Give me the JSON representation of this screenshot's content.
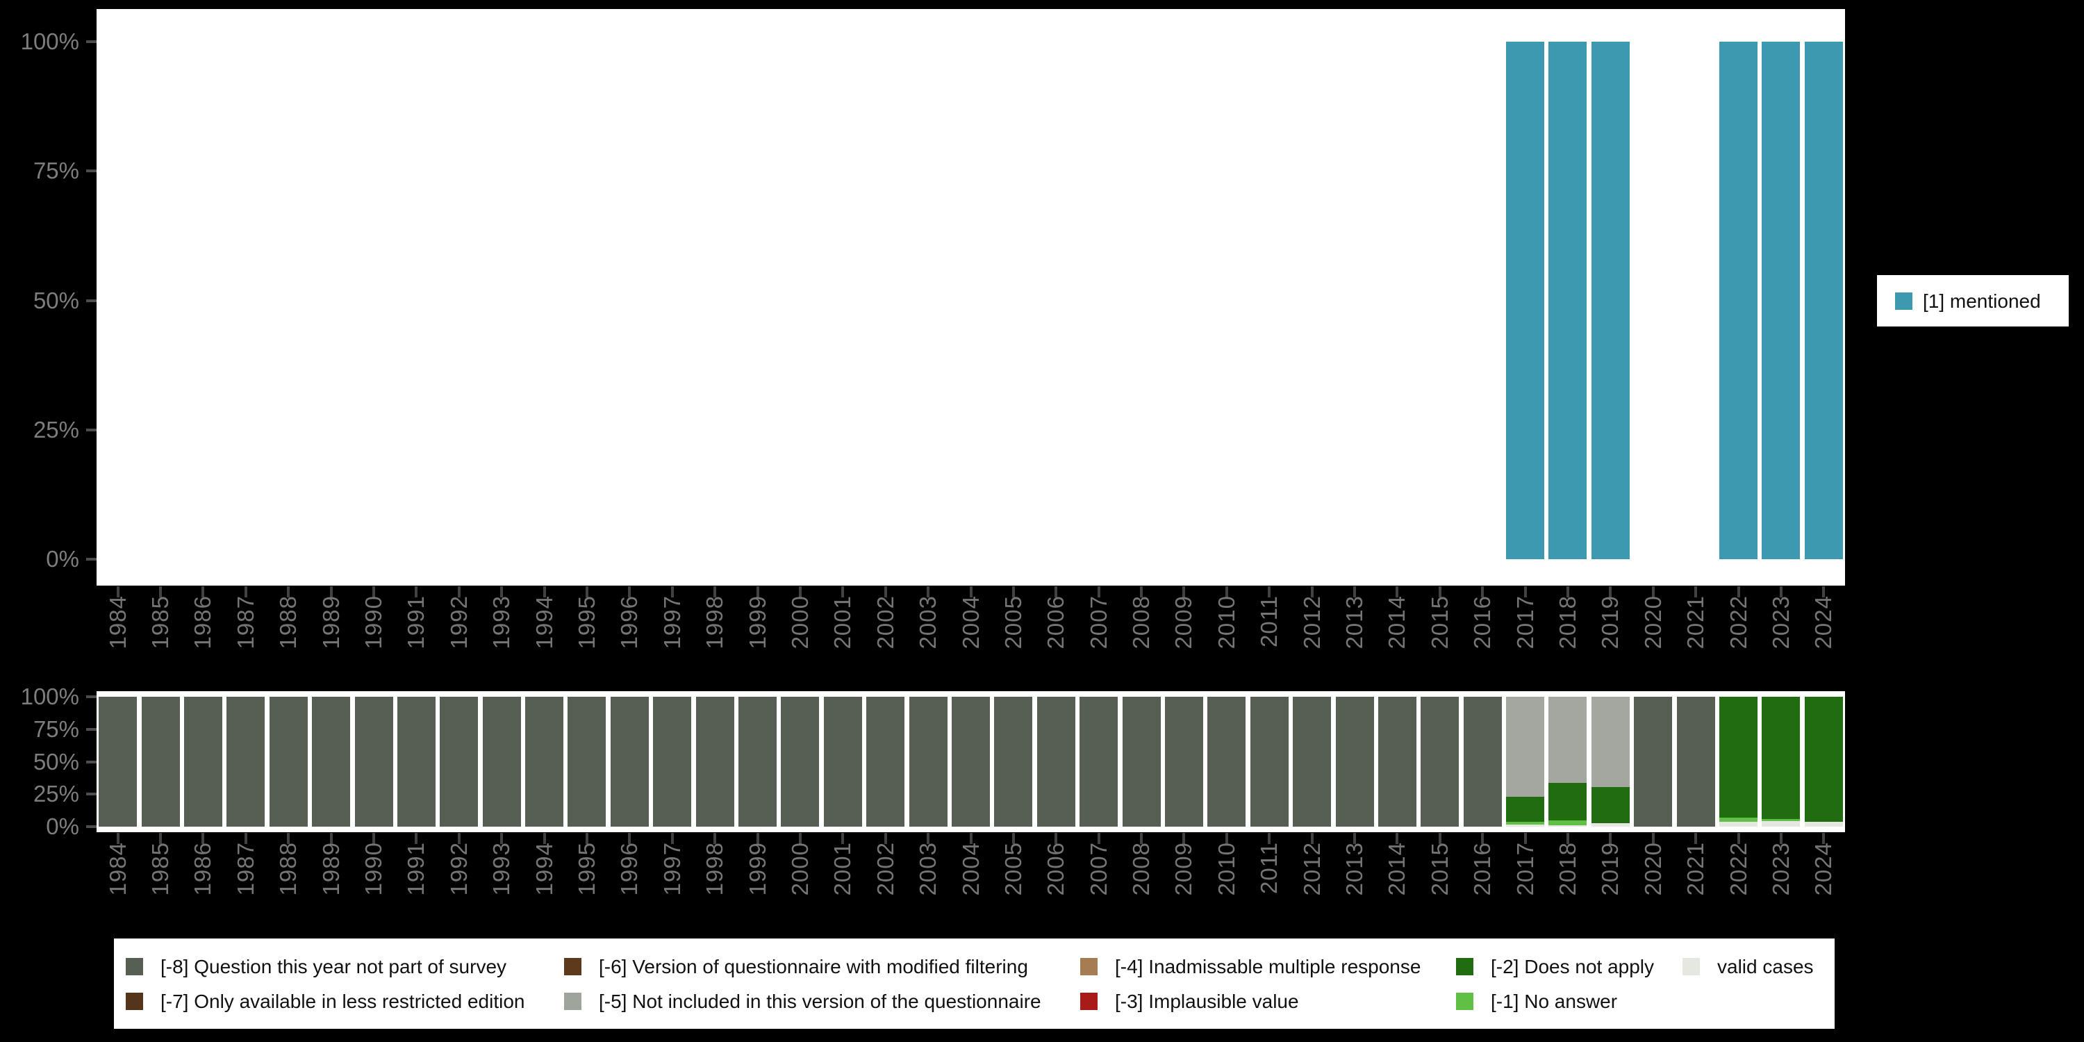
{
  "style": {
    "background": "#000000",
    "plot_background": "#ffffff",
    "axis_text_color": "#7d7d7d",
    "tick_color": "#4d4d4d",
    "legend_background": "#ffffff",
    "legend_text_color": "#111111"
  },
  "legend_right": {
    "label": "[1] mentioned",
    "color": "#3c99b0"
  },
  "legend_bottom": {
    "items": [
      {
        "label": "[-8] Question this year not part of survey",
        "color": "#575f55"
      },
      {
        "label": "[-7] Only available in less restricted edition",
        "color": "#54341a"
      },
      {
        "label": "[-6] Version of questionnaire with modified filtering",
        "color": "#5d3a1b"
      },
      {
        "label": "[-5] Not included in this version of the questionnaire",
        "color": "#9fa49c"
      },
      {
        "label": "[-4] Inadmissable multiple response",
        "color": "#a67c52"
      },
      {
        "label": "[-3] Implausible value",
        "color": "#a81b19"
      },
      {
        "label": "[-2] Does not apply",
        "color": "#216b10"
      },
      {
        "label": "[-1] No answer",
        "color": "#5fc045"
      },
      {
        "label": "valid cases",
        "color": "#e4e8e1"
      }
    ]
  },
  "chart_data": [
    {
      "id": "top-frequencies",
      "type": "bar",
      "stacked": true,
      "title": "",
      "xlabel": "",
      "ylabel": "",
      "ylim": [
        0,
        100
      ],
      "yticks": [
        "0%",
        "25%",
        "50%",
        "75%",
        "100%"
      ],
      "grid": false,
      "legend_position": "right",
      "categories": [
        "1984",
        "1985",
        "1986",
        "1987",
        "1988",
        "1989",
        "1990",
        "1991",
        "1992",
        "1993",
        "1994",
        "1995",
        "1996",
        "1997",
        "1998",
        "1999",
        "2000",
        "2001",
        "2002",
        "2003",
        "2004",
        "2005",
        "2006",
        "2007",
        "2008",
        "2009",
        "2010",
        "2011",
        "2012",
        "2013",
        "2014",
        "2015",
        "2016",
        "2017",
        "2018",
        "2019",
        "2020",
        "2021",
        "2022",
        "2023",
        "2024"
      ],
      "series": [
        {
          "name": "[1] mentioned",
          "color": "#3c99b0",
          "values": [
            0,
            0,
            0,
            0,
            0,
            0,
            0,
            0,
            0,
            0,
            0,
            0,
            0,
            0,
            0,
            0,
            0,
            0,
            0,
            0,
            0,
            0,
            0,
            0,
            0,
            0,
            0,
            0,
            0,
            0,
            0,
            0,
            0,
            100,
            100,
            100,
            0,
            0,
            100,
            100,
            100
          ]
        }
      ]
    },
    {
      "id": "bottom-missing-values",
      "type": "bar",
      "stacked": true,
      "title": "",
      "xlabel": "",
      "ylabel": "",
      "ylim": [
        0,
        100
      ],
      "yticks": [
        "0%",
        "25%",
        "50%",
        "75%",
        "100%"
      ],
      "grid": false,
      "legend_position": "bottom",
      "categories": [
        "1984",
        "1985",
        "1986",
        "1987",
        "1988",
        "1989",
        "1990",
        "1991",
        "1992",
        "1993",
        "1994",
        "1995",
        "1996",
        "1997",
        "1998",
        "1999",
        "2000",
        "2001",
        "2002",
        "2003",
        "2004",
        "2005",
        "2006",
        "2007",
        "2008",
        "2009",
        "2010",
        "2011",
        "2012",
        "2013",
        "2014",
        "2015",
        "2016",
        "2017",
        "2018",
        "2019",
        "2020",
        "2021",
        "2022",
        "2023",
        "2024"
      ],
      "series": [
        {
          "name": "valid cases",
          "color": "#e4e8e1",
          "values": [
            0,
            0,
            0,
            0,
            0,
            0,
            0,
            0,
            0,
            0,
            0,
            0,
            0,
            0,
            0,
            0,
            0,
            0,
            0,
            0,
            0,
            0,
            0,
            0,
            0,
            0,
            0,
            0,
            0,
            0,
            0,
            0,
            0,
            1.5,
            1,
            2.5,
            0,
            0,
            3.5,
            4.5,
            3.5
          ]
        },
        {
          "name": "[-1] No answer",
          "color": "#5fc045",
          "values": [
            0,
            0,
            0,
            0,
            0,
            0,
            0,
            0,
            0,
            0,
            0,
            0,
            0,
            0,
            0,
            0,
            0,
            0,
            0,
            0,
            0,
            0,
            0,
            0,
            0,
            0,
            0,
            0,
            0,
            0,
            0,
            0,
            0,
            2.5,
            4,
            0,
            0,
            0,
            3.5,
            1.5,
            0
          ]
        },
        {
          "name": "[-2] Does not apply",
          "color": "#216b10",
          "values": [
            0,
            0,
            0,
            0,
            0,
            0,
            0,
            0,
            0,
            0,
            0,
            0,
            0,
            0,
            0,
            0,
            0,
            0,
            0,
            0,
            0,
            0,
            0,
            0,
            0,
            0,
            0,
            0,
            0,
            0,
            0,
            0,
            0,
            19,
            28.5,
            28,
            0,
            0,
            93,
            94,
            96.5
          ]
        },
        {
          "name": "[-3] Implausible value",
          "color": "#a81b19",
          "values": [
            0,
            0,
            0,
            0,
            0,
            0,
            0,
            0,
            0,
            0,
            0,
            0,
            0,
            0,
            0,
            0,
            0,
            0,
            0,
            0,
            0,
            0,
            0,
            0,
            0,
            0,
            0,
            0,
            0,
            0,
            0,
            0,
            0,
            0,
            0,
            0,
            0,
            0,
            0,
            0,
            0
          ]
        },
        {
          "name": "[-4] Inadmissable multiple response",
          "color": "#a67c52",
          "values": [
            0,
            0,
            0,
            0,
            0,
            0,
            0,
            0,
            0,
            0,
            0,
            0,
            0,
            0,
            0,
            0,
            0,
            0,
            0,
            0,
            0,
            0,
            0,
            0,
            0,
            0,
            0,
            0,
            0,
            0,
            0,
            0,
            0,
            0,
            0,
            0,
            0,
            0,
            0,
            0,
            0
          ]
        },
        {
          "name": "[-5] Not included in this version of the questionnaire",
          "color": "#a3a79f",
          "values": [
            0,
            0,
            0,
            0,
            0,
            0,
            0,
            0,
            0,
            0,
            0,
            0,
            0,
            0,
            0,
            0,
            0,
            0,
            0,
            0,
            0,
            0,
            0,
            0,
            0,
            0,
            0,
            0,
            0,
            0,
            0,
            0,
            0,
            77,
            66.5,
            69.5,
            0,
            0,
            0,
            0,
            0
          ]
        },
        {
          "name": "[-6] Version of questionnaire with modified filtering",
          "color": "#5d3a1b",
          "values": [
            0,
            0,
            0,
            0,
            0,
            0,
            0,
            0,
            0,
            0,
            0,
            0,
            0,
            0,
            0,
            0,
            0,
            0,
            0,
            0,
            0,
            0,
            0,
            0,
            0,
            0,
            0,
            0,
            0,
            0,
            0,
            0,
            0,
            0,
            0,
            0,
            0,
            0,
            0,
            0,
            0
          ]
        },
        {
          "name": "[-7] Only available in less restricted edition",
          "color": "#54341a",
          "values": [
            0,
            0,
            0,
            0,
            0,
            0,
            0,
            0,
            0,
            0,
            0,
            0,
            0,
            0,
            0,
            0,
            0,
            0,
            0,
            0,
            0,
            0,
            0,
            0,
            0,
            0,
            0,
            0,
            0,
            0,
            0,
            0,
            0,
            0,
            0,
            0,
            0,
            0,
            0,
            0,
            0
          ]
        },
        {
          "name": "[-8] Question this year not part of survey",
          "color": "#575f55",
          "values": [
            100,
            100,
            100,
            100,
            100,
            100,
            100,
            100,
            100,
            100,
            100,
            100,
            100,
            100,
            100,
            100,
            100,
            100,
            100,
            100,
            100,
            100,
            100,
            100,
            100,
            100,
            100,
            100,
            100,
            100,
            100,
            100,
            100,
            0,
            0,
            0,
            100,
            100,
            0,
            0,
            0
          ]
        }
      ]
    }
  ]
}
